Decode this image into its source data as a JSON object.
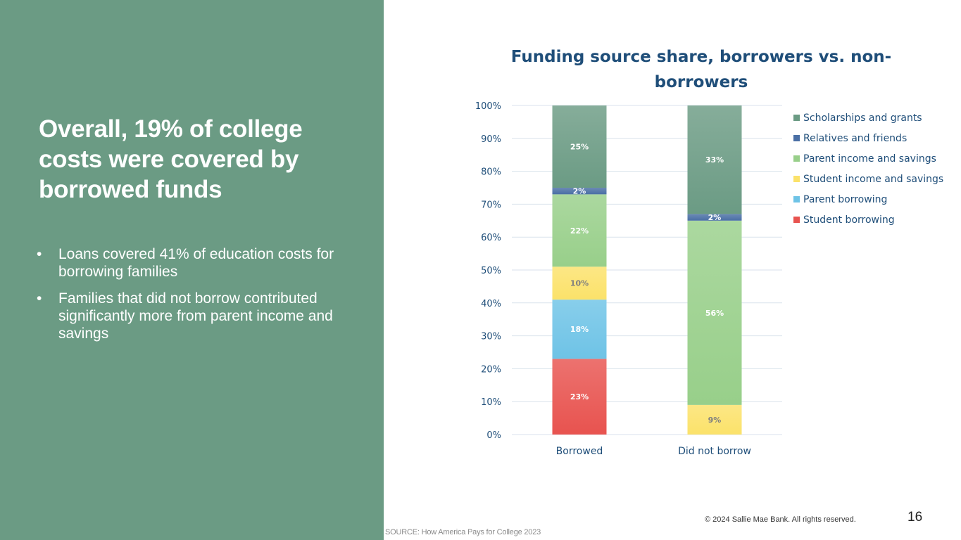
{
  "slide": {
    "headline": "Overall, 19% of college costs were covered by borrowed funds",
    "bullets": [
      "Loans covered 41% of education costs for borrowing families",
      "Families that did not borrow contributed significantly more from parent income and savings"
    ],
    "bullet_glyph": "•",
    "source": "SOURCE: How America Pays for College 2023",
    "copyright": "© 2024 Sallie Mae Bank. All rights reserved.",
    "page_number": "16"
  },
  "chart_data": {
    "type": "bar",
    "stacked": true,
    "title_lines": [
      "Funding source share, borrowers vs. non-",
      "borrowers"
    ],
    "categories": [
      "Borrowed",
      "Did not borrow"
    ],
    "ylim": [
      0,
      100
    ],
    "yticks": [
      "0%",
      "10%",
      "20%",
      "30%",
      "40%",
      "50%",
      "60%",
      "70%",
      "80%",
      "90%",
      "100%"
    ],
    "grid": true,
    "legend_position": "right",
    "series": [
      {
        "name": "Student borrowing",
        "color": "#e8534f",
        "values": [
          23,
          0
        ],
        "labels": [
          "23%",
          ""
        ]
      },
      {
        "name": "Parent borrowing",
        "color": "#6ec3e6",
        "values": [
          18,
          0
        ],
        "labels": [
          "18%",
          ""
        ]
      },
      {
        "name": "Student income and savings",
        "color": "#fbe26a",
        "values": [
          10,
          9
        ],
        "labels": [
          "10%",
          "9%"
        ]
      },
      {
        "name": "Parent income and savings",
        "color": "#98cf8a",
        "values": [
          22,
          56
        ],
        "labels": [
          "22%",
          "56%"
        ]
      },
      {
        "name": "Relatives and friends",
        "color": "#4a6fa5",
        "values": [
          2,
          2
        ],
        "labels": [
          "2%",
          "2%"
        ]
      },
      {
        "name": "Scholarships and grants",
        "color": "#6b9b84",
        "values": [
          25,
          33
        ],
        "labels": [
          "25%",
          "33%"
        ]
      }
    ],
    "legend_order": [
      "Scholarships and grants",
      "Relatives and friends",
      "Parent income and savings",
      "Student income and savings",
      "Parent borrowing",
      "Student borrowing"
    ]
  }
}
